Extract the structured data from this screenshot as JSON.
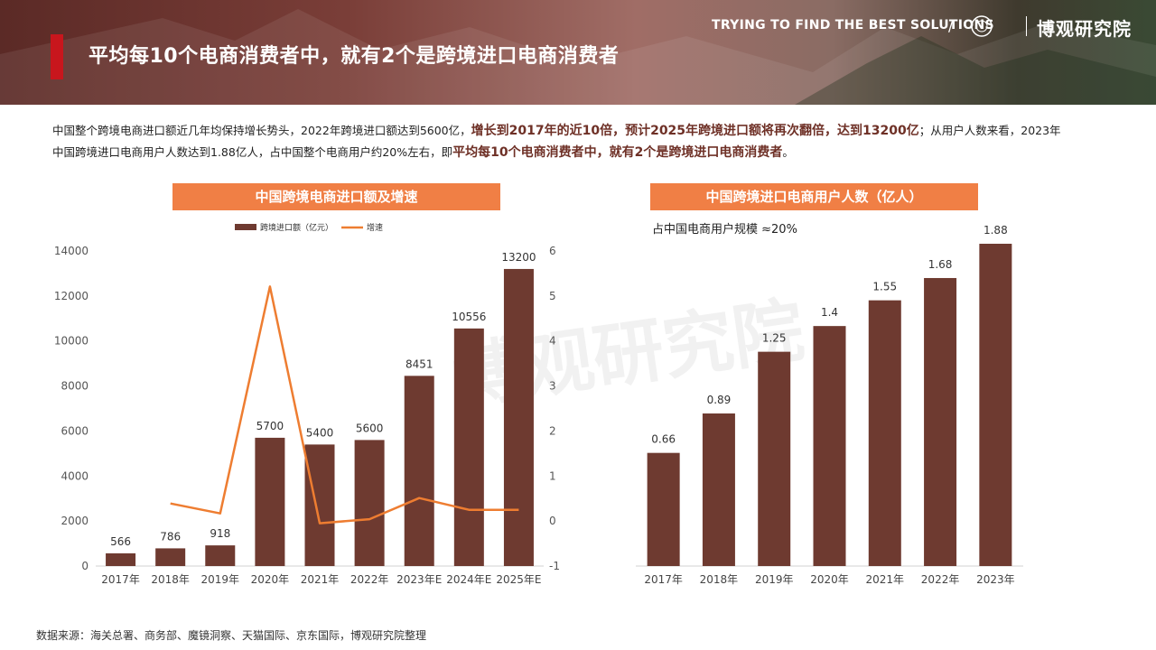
{
  "header": {
    "title": "平均每10个电商消费者中，就有2个是跨境进口电商消费者",
    "brand_en": "TRYING TO FIND THE BEST SOLUTIONS",
    "slash": "/",
    "brand_cn": "博观研究院"
  },
  "intro": {
    "p1": "中国整个跨境电商进口额近几年均保持增长势头，2022年跨境进口额达到5600亿，",
    "h1": "增长到2017年的近10倍，预计2025年跨境进口额将再次翻倍，达到13200亿",
    "p2": "；从用户人数来看，2023年中国跨境进口电商用户人数达到1.88亿人，占中国整个电商用户约20%左右，即",
    "h2": "平均每10个电商消费者中，就有2个是跨境进口电商消费者",
    "p3": "。"
  },
  "left_panel_title": "中国跨境电商进口额及增速",
  "right_panel_title": "中国跨境进口电商用户人数（亿人）",
  "right_note": "占中国电商用户规模 ≈20%",
  "source": "数据来源：海关总署、商务部、魔镜洞察、天猫国际、京东国际，博观研究院整理",
  "colors": {
    "bar": "#6e3a30",
    "line": "#ee7d31",
    "accent": "#c8161d",
    "panel": "#f07f45"
  },
  "chart_data": [
    {
      "type": "bar+line",
      "categories": [
        "2017年",
        "2018年",
        "2019年",
        "2020年",
        "2021年",
        "2022年",
        "2023年E",
        "2024年E",
        "2025年E"
      ],
      "series": [
        {
          "name": "跨境进口额（亿元）",
          "type": "bar",
          "axis": "left",
          "values": [
            566,
            786,
            918,
            5700,
            5400,
            5600,
            8451,
            10556,
            13200
          ]
        },
        {
          "name": "增速",
          "type": "line",
          "axis": "right",
          "values": [
            null,
            0.39,
            0.17,
            5.21,
            -0.05,
            0.04,
            0.51,
            0.25,
            0.25
          ]
        }
      ],
      "y_left": {
        "min": 0,
        "max": 14000,
        "ticks": [
          0,
          2000,
          4000,
          6000,
          8000,
          10000,
          12000,
          14000
        ]
      },
      "y_right": {
        "min": -1,
        "max": 6,
        "ticks": [
          -1,
          0,
          1,
          2,
          3,
          4,
          5,
          6
        ]
      },
      "legend": "top"
    },
    {
      "type": "bar",
      "categories": [
        "2017年",
        "2018年",
        "2019年",
        "2020年",
        "2021年",
        "2022年",
        "2023年"
      ],
      "values": [
        0.66,
        0.89,
        1.25,
        1.4,
        1.55,
        1.68,
        1.88
      ],
      "labels": [
        "0.66",
        "0.89",
        "1.25",
        "1.4",
        "1.55",
        "1.68",
        "1.88"
      ],
      "ylim": [
        0,
        2.0
      ]
    }
  ]
}
